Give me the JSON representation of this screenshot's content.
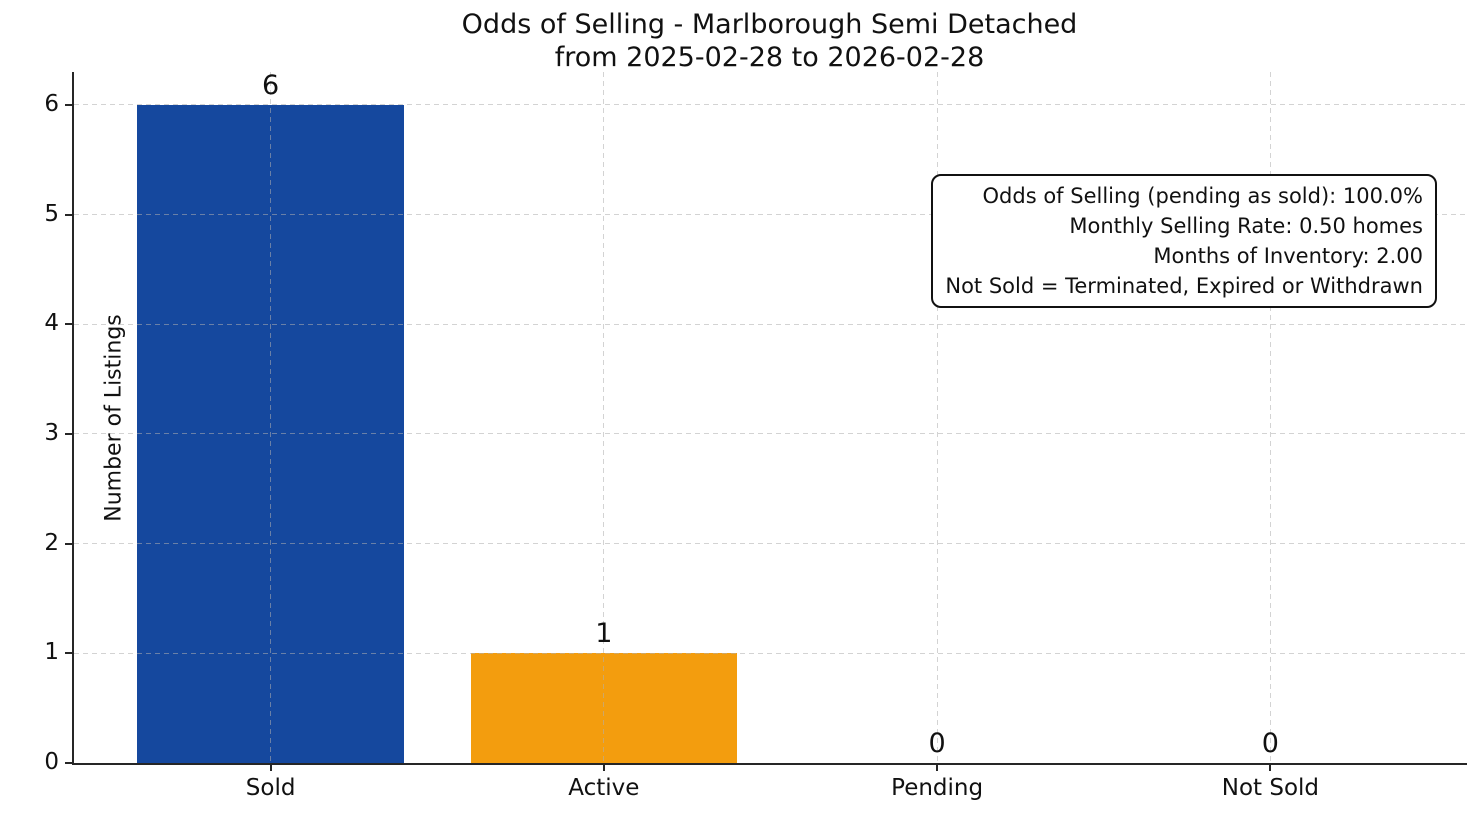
{
  "chart_data": {
    "type": "bar",
    "title": "Odds of Selling - Marlborough Semi Detached",
    "subtitle": "from 2025-02-28 to 2026-02-28",
    "ylabel": "Number of Listings",
    "xlabel": "",
    "categories": [
      "Sold",
      "Active",
      "Pending",
      "Not Sold"
    ],
    "values": [
      6,
      1,
      0,
      0
    ],
    "value_labels": [
      "6",
      "1",
      "0",
      "0"
    ],
    "bar_colors": [
      "#15489E",
      "#F39D0E",
      null,
      null
    ],
    "yticks": [
      0,
      1,
      2,
      3,
      4,
      5,
      6
    ],
    "ylim": [
      0,
      6.3
    ],
    "xlim": [
      -0.59,
      3.59
    ],
    "bar_width": 0.8,
    "grid": true,
    "grid_style": "dashed",
    "legend_position": "none",
    "axis_color": "#262626",
    "annotation_box": {
      "align": "right",
      "lines": [
        "Odds of Selling (pending as sold): 100.0%",
        "Monthly Selling Rate: 0.50 homes",
        "Months of Inventory: 2.00",
        "Not Sold = Terminated, Expired or Withdrawn"
      ]
    }
  }
}
